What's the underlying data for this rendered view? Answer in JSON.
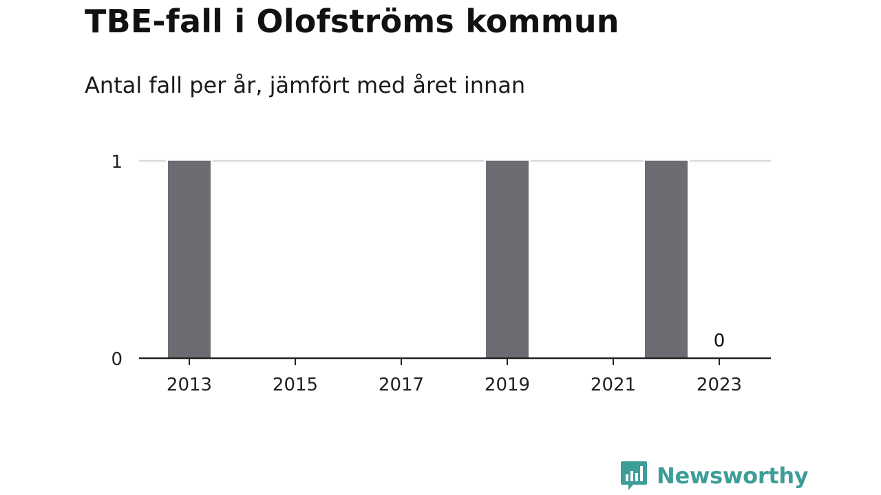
{
  "title": "TBE-fall i Olofströms kommun",
  "subtitle": "Antal fall per år, jämfört med året innan",
  "colors": {
    "bar": "#6d6c72",
    "grid": "#d9d9d9",
    "axis": "#222222",
    "brand": "#3d9d98"
  },
  "brand": {
    "name": "Newsworthy",
    "icon": "newsworthy-logo-icon"
  },
  "chart_data": {
    "type": "bar",
    "title": "TBE-fall i Olofströms kommun",
    "subtitle": "Antal fall per år, jämfört med året innan",
    "categories": [
      "2013",
      "2014",
      "2015",
      "2016",
      "2017",
      "2018",
      "2019",
      "2020",
      "2021",
      "2022",
      "2023"
    ],
    "values": [
      1,
      0,
      0,
      0,
      0,
      0,
      1,
      0,
      0,
      1,
      0
    ],
    "x_tick_labels": [
      "2013",
      "2015",
      "2017",
      "2019",
      "2021",
      "2023"
    ],
    "y_ticks": [
      0,
      1
    ],
    "y_tick_labels": [
      "0",
      "1"
    ],
    "ylim": [
      0,
      1
    ],
    "xlabel": "",
    "ylabel": "",
    "grid": true,
    "data_labels": [
      {
        "category": "2023",
        "text": "0"
      }
    ]
  }
}
